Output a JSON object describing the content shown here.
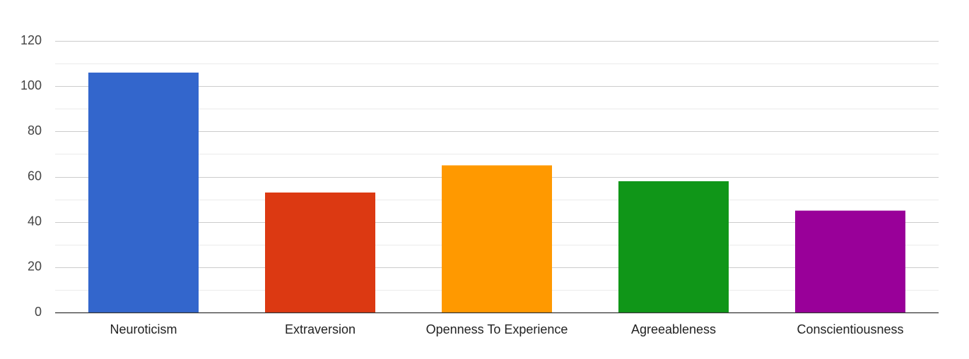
{
  "chart_data": {
    "type": "bar",
    "categories": [
      "Neuroticism",
      "Extraversion",
      "Openness To Experience",
      "Agreeableness",
      "Conscientiousness"
    ],
    "values": [
      106,
      53,
      65,
      58,
      45
    ],
    "colors": [
      "#3366cc",
      "#dc3912",
      "#ff9900",
      "#109618",
      "#990099"
    ],
    "ylim": [
      0,
      120
    ],
    "y_ticks": [
      0,
      20,
      40,
      60,
      80,
      100,
      120
    ],
    "grid": true,
    "minor_grid": true,
    "title": "",
    "xlabel": "",
    "ylabel": ""
  }
}
